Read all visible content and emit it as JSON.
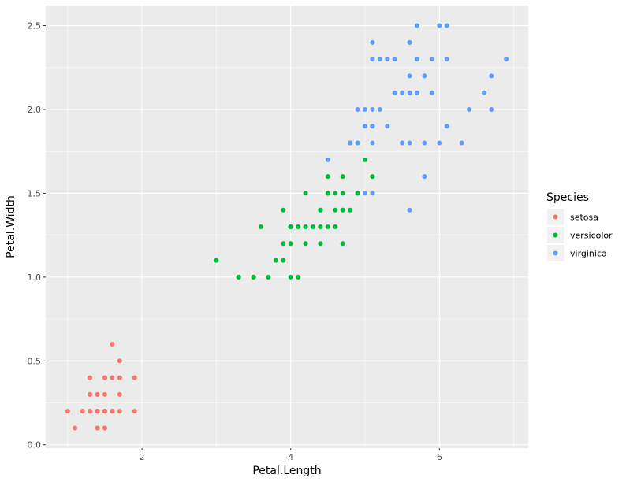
{
  "chart_data": {
    "type": "scatter",
    "xlabel": "Petal.Length",
    "ylabel": "Petal.Width",
    "xlim": [
      0.705,
      7.195
    ],
    "ylim": [
      -0.02,
      2.62
    ],
    "x_ticks": [
      2,
      4,
      6
    ],
    "x_tick_labels": [
      "2",
      "4",
      "6"
    ],
    "y_ticks": [
      0,
      0.5,
      1,
      1.5,
      2,
      2.5
    ],
    "y_tick_labels": [
      "0.0",
      "0.5",
      "1.0",
      "1.5",
      "2.0",
      "2.5"
    ],
    "grid": true,
    "legend": {
      "title": "Species",
      "placement": "right"
    },
    "series": [
      {
        "name": "setosa",
        "color": "#F8766D",
        "points": [
          [
            1.4,
            0.2
          ],
          [
            1.4,
            0.2
          ],
          [
            1.3,
            0.2
          ],
          [
            1.5,
            0.2
          ],
          [
            1.4,
            0.2
          ],
          [
            1.7,
            0.4
          ],
          [
            1.4,
            0.3
          ],
          [
            1.5,
            0.2
          ],
          [
            1.4,
            0.2
          ],
          [
            1.5,
            0.1
          ],
          [
            1.5,
            0.2
          ],
          [
            1.6,
            0.2
          ],
          [
            1.4,
            0.1
          ],
          [
            1.1,
            0.1
          ],
          [
            1.2,
            0.2
          ],
          [
            1.5,
            0.4
          ],
          [
            1.3,
            0.4
          ],
          [
            1.4,
            0.3
          ],
          [
            1.7,
            0.3
          ],
          [
            1.5,
            0.3
          ],
          [
            1.7,
            0.2
          ],
          [
            1.5,
            0.4
          ],
          [
            1.0,
            0.2
          ],
          [
            1.7,
            0.5
          ],
          [
            1.9,
            0.2
          ],
          [
            1.6,
            0.2
          ],
          [
            1.6,
            0.4
          ],
          [
            1.5,
            0.2
          ],
          [
            1.4,
            0.2
          ],
          [
            1.6,
            0.2
          ],
          [
            1.6,
            0.2
          ],
          [
            1.5,
            0.4
          ],
          [
            1.5,
            0.1
          ],
          [
            1.4,
            0.2
          ],
          [
            1.5,
            0.2
          ],
          [
            1.2,
            0.2
          ],
          [
            1.3,
            0.2
          ],
          [
            1.4,
            0.1
          ],
          [
            1.3,
            0.2
          ],
          [
            1.5,
            0.2
          ],
          [
            1.3,
            0.3
          ],
          [
            1.3,
            0.3
          ],
          [
            1.3,
            0.2
          ],
          [
            1.6,
            0.6
          ],
          [
            1.9,
            0.4
          ],
          [
            1.4,
            0.3
          ],
          [
            1.6,
            0.2
          ],
          [
            1.4,
            0.2
          ],
          [
            1.5,
            0.2
          ],
          [
            1.4,
            0.2
          ]
        ]
      },
      {
        "name": "versicolor",
        "color": "#00BA38",
        "points": [
          [
            4.7,
            1.4
          ],
          [
            4.5,
            1.5
          ],
          [
            4.9,
            1.5
          ],
          [
            4.0,
            1.3
          ],
          [
            4.6,
            1.5
          ],
          [
            4.5,
            1.3
          ],
          [
            4.7,
            1.6
          ],
          [
            3.3,
            1.0
          ],
          [
            4.6,
            1.3
          ],
          [
            3.9,
            1.4
          ],
          [
            3.5,
            1.0
          ],
          [
            4.2,
            1.5
          ],
          [
            4.0,
            1.0
          ],
          [
            4.7,
            1.4
          ],
          [
            3.6,
            1.3
          ],
          [
            4.4,
            1.4
          ],
          [
            4.5,
            1.5
          ],
          [
            4.1,
            1.0
          ],
          [
            4.5,
            1.5
          ],
          [
            3.9,
            1.1
          ],
          [
            4.8,
            1.8
          ],
          [
            4.0,
            1.3
          ],
          [
            4.9,
            1.5
          ],
          [
            4.7,
            1.2
          ],
          [
            4.3,
            1.3
          ],
          [
            4.4,
            1.4
          ],
          [
            4.8,
            1.4
          ],
          [
            5.0,
            1.7
          ],
          [
            4.5,
            1.5
          ],
          [
            3.5,
            1.0
          ],
          [
            3.8,
            1.1
          ],
          [
            3.7,
            1.0
          ],
          [
            3.9,
            1.2
          ],
          [
            5.1,
            1.6
          ],
          [
            4.5,
            1.5
          ],
          [
            4.5,
            1.6
          ],
          [
            4.7,
            1.5
          ],
          [
            4.4,
            1.3
          ],
          [
            4.1,
            1.3
          ],
          [
            4.0,
            1.3
          ],
          [
            4.4,
            1.2
          ],
          [
            4.6,
            1.4
          ],
          [
            4.0,
            1.2
          ],
          [
            3.3,
            1.0
          ],
          [
            4.2,
            1.3
          ],
          [
            4.2,
            1.2
          ],
          [
            4.2,
            1.3
          ],
          [
            4.3,
            1.3
          ],
          [
            3.0,
            1.1
          ],
          [
            4.1,
            1.3
          ]
        ]
      },
      {
        "name": "virginica",
        "color": "#619CFF",
        "points": [
          [
            6.0,
            2.5
          ],
          [
            5.1,
            1.9
          ],
          [
            5.9,
            2.1
          ],
          [
            5.6,
            1.8
          ],
          [
            5.8,
            2.2
          ],
          [
            6.6,
            2.1
          ],
          [
            4.5,
            1.7
          ],
          [
            6.3,
            1.8
          ],
          [
            5.8,
            1.8
          ],
          [
            6.1,
            2.5
          ],
          [
            5.1,
            2.0
          ],
          [
            5.3,
            1.9
          ],
          [
            5.5,
            2.1
          ],
          [
            5.0,
            2.0
          ],
          [
            5.1,
            2.4
          ],
          [
            5.3,
            2.3
          ],
          [
            5.5,
            1.8
          ],
          [
            6.7,
            2.2
          ],
          [
            6.9,
            2.3
          ],
          [
            5.0,
            1.5
          ],
          [
            5.7,
            2.3
          ],
          [
            4.9,
            2.0
          ],
          [
            6.7,
            2.0
          ],
          [
            4.9,
            1.8
          ],
          [
            5.7,
            2.1
          ],
          [
            6.0,
            1.8
          ],
          [
            4.8,
            1.8
          ],
          [
            4.9,
            1.8
          ],
          [
            5.6,
            2.1
          ],
          [
            5.8,
            1.6
          ],
          [
            6.1,
            1.9
          ],
          [
            6.4,
            2.0
          ],
          [
            5.6,
            2.2
          ],
          [
            5.1,
            1.5
          ],
          [
            5.6,
            1.4
          ],
          [
            6.1,
            2.3
          ],
          [
            5.6,
            2.4
          ],
          [
            5.5,
            1.8
          ],
          [
            4.8,
            1.8
          ],
          [
            5.4,
            2.1
          ],
          [
            5.6,
            2.4
          ],
          [
            5.1,
            2.3
          ],
          [
            5.1,
            1.9
          ],
          [
            5.9,
            2.3
          ],
          [
            5.7,
            2.5
          ],
          [
            5.2,
            2.3
          ],
          [
            5.0,
            1.9
          ],
          [
            5.2,
            2.0
          ],
          [
            5.4,
            2.3
          ],
          [
            5.1,
            1.8
          ]
        ]
      }
    ]
  }
}
